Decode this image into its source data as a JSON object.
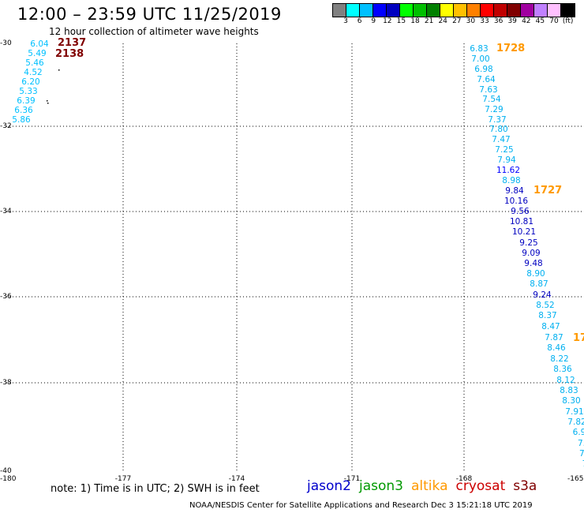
{
  "header": {
    "title": "12:00 – 23:59 UTC 11/25/2019",
    "subtitle": "12 hour collection of altimeter wave heights"
  },
  "colorbar": {
    "swatches": [
      "#808080",
      "#00ffff",
      "#00c0ff",
      "#0000ff",
      "#0000c0",
      "#00ff00",
      "#00c000",
      "#008000",
      "#ffff00",
      "#ffc000",
      "#ff8000",
      "#ff0000",
      "#c00000",
      "#800000",
      "#a000a0",
      "#c080ff",
      "#ffc0ff",
      "#000000"
    ],
    "ticks": [
      "3",
      "6",
      "9",
      "12",
      "15",
      "18",
      "21",
      "24",
      "27",
      "30",
      "33",
      "36",
      "39",
      "42",
      "45",
      "70",
      "(ft)"
    ]
  },
  "map_axes": {
    "lat_labels": [
      "-30",
      "-32",
      "-34",
      "-36",
      "-38",
      "-40"
    ],
    "lon_labels": [
      "-180",
      "-177",
      "-174",
      "-171",
      "-168",
      "-165"
    ]
  },
  "passes": [
    {
      "label": "2137",
      "color": "#800000"
    },
    {
      "label": "2138",
      "color": "#800000"
    },
    {
      "label": "1728",
      "color": "#ff9900"
    },
    {
      "label": "1727",
      "color": "#ff9900"
    },
    {
      "label": "17",
      "color": "#ff9900"
    }
  ],
  "wave_heights_left": [
    "6.04",
    "5.49",
    "5.46",
    "4.52",
    "6.20",
    "5.33",
    "6.39",
    "6.36",
    "5.86"
  ],
  "wave_heights_right": [
    "6.83",
    "7.00",
    "6.98",
    "7.64",
    "7.63",
    "7.54",
    "7.29",
    "7.37",
    "7.80",
    "7.47",
    "7.25",
    "7.94",
    "11.62",
    "8.98",
    "9.84",
    "10.16",
    "9.56",
    "10.81",
    "10.21",
    "9.25",
    "9.09",
    "9.48",
    "8.90",
    "8.87",
    "9.24",
    "8.52",
    "8.37",
    "8.47",
    "7.87",
    "8.46",
    "8.22",
    "8.36",
    "8.12",
    "8.83",
    "8.30",
    "7.91",
    "7.82",
    "6.9",
    "7.",
    "7.",
    "7"
  ],
  "note": "note: 1) Time is in UTC; 2) SWH is in feet",
  "legend": [
    {
      "name": "jason2",
      "color": "#0000cc"
    },
    {
      "name": "jason3",
      "color": "#009900"
    },
    {
      "name": "altika",
      "color": "#ff9900"
    },
    {
      "name": "cryosat",
      "color": "#cc0000"
    },
    {
      "name": "s3a",
      "color": "#800000"
    }
  ],
  "footer": "NOAA/NESDIS Center for Satellite Applications and Research   Dec  3 15:21:18 UTC 2019"
}
